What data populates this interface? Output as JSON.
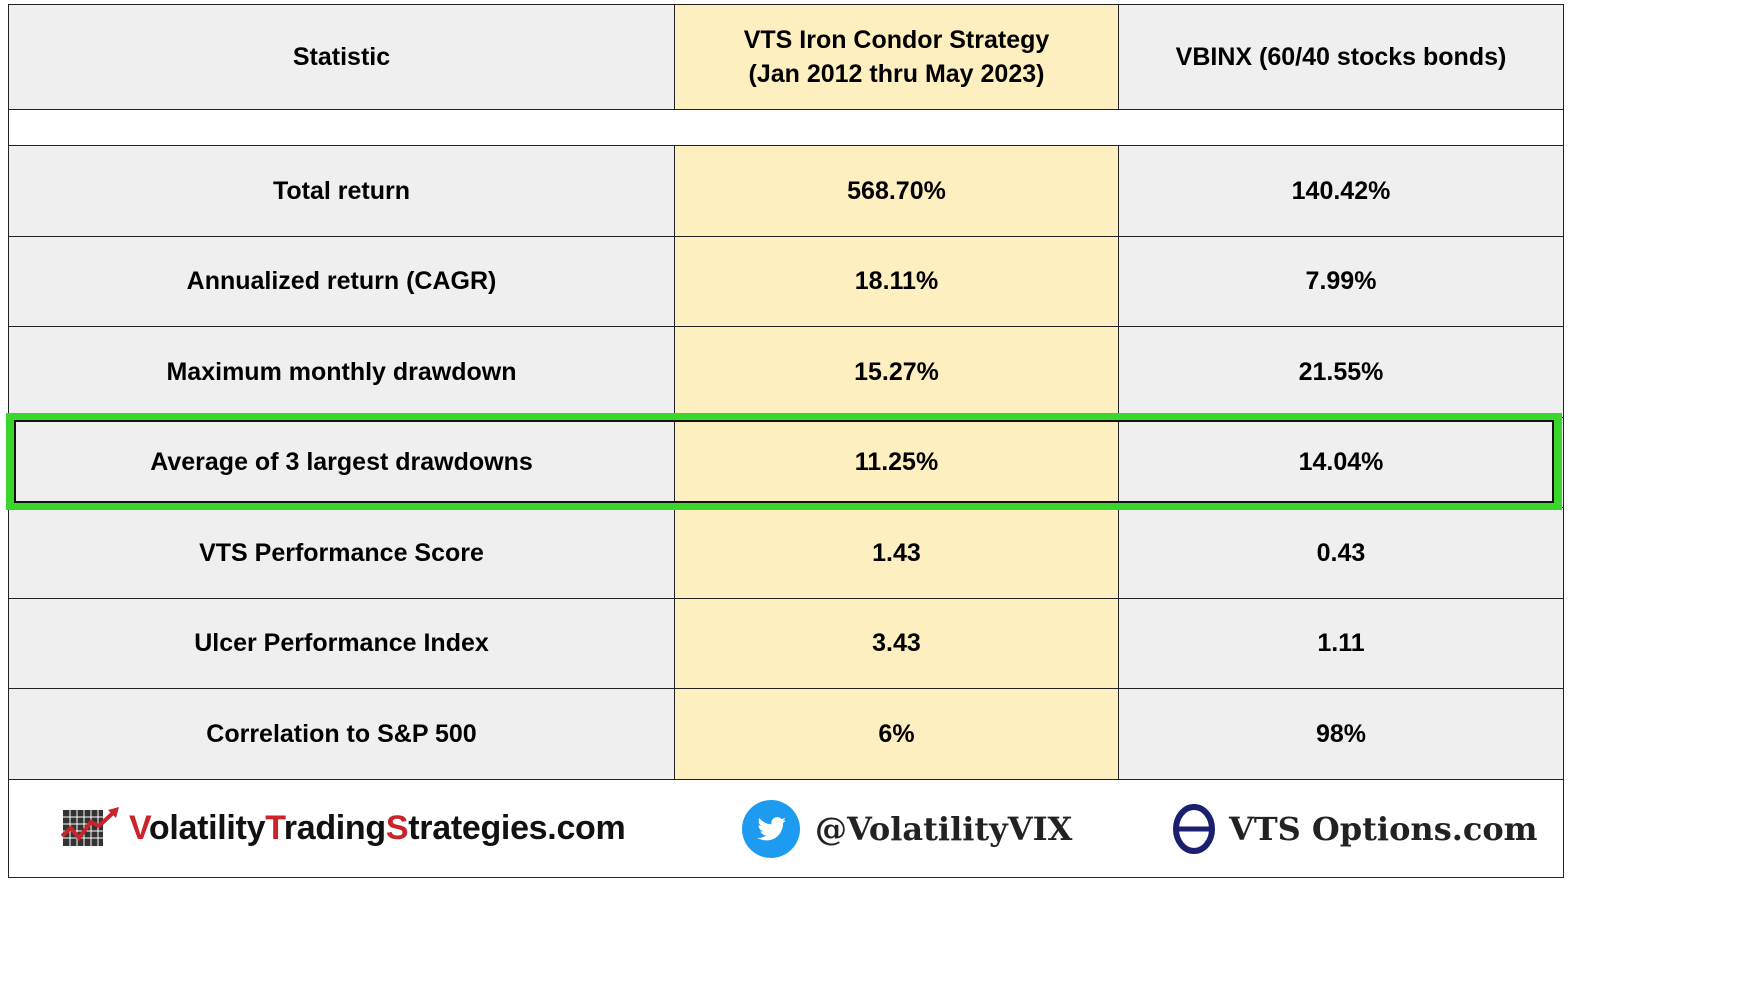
{
  "table": {
    "header": {
      "col1": "Statistic",
      "col2_line1": "VTS Iron Condor Strategy",
      "col2_line2": "(Jan 2012 thru May 2023)",
      "col3": "VBINX  (60/40 stocks bonds)"
    },
    "rows": [
      {
        "stat": "Total return",
        "vts": "568.70%",
        "vbinx": "140.42%"
      },
      {
        "stat": "Annualized return  (CAGR)",
        "vts": "18.11%",
        "vbinx": "7.99%"
      },
      {
        "stat": "Maximum monthly drawdown",
        "vts": "15.27%",
        "vbinx": "21.55%"
      },
      {
        "stat": "Average of 3 largest drawdowns",
        "vts": "11.25%",
        "vbinx": "14.04%"
      },
      {
        "stat": "VTS Performance Score",
        "vts": "1.43",
        "vbinx": "0.43"
      },
      {
        "stat": "Ulcer Performance Index",
        "vts": "3.43",
        "vbinx": "1.11"
      },
      {
        "stat": "Correlation to S&P 500",
        "vts": "6%",
        "vbinx": "98%"
      }
    ]
  },
  "footer": {
    "site": {
      "v": "V",
      "olatility": "olatility",
      "t": "T",
      "rading": "rading",
      "s": "S",
      "trategies": "trategies.com"
    },
    "twitter_handle": "@VolatilityVIX",
    "options_site": "VTS Options.com"
  },
  "colors": {
    "highlight": "#3ad62c",
    "vts_column": "#fdefc0",
    "gray_cells": "#efefef",
    "brand_red": "#c9242b",
    "twitter_blue": "#1d9bf0",
    "theta_navy": "#1a1f6e"
  }
}
